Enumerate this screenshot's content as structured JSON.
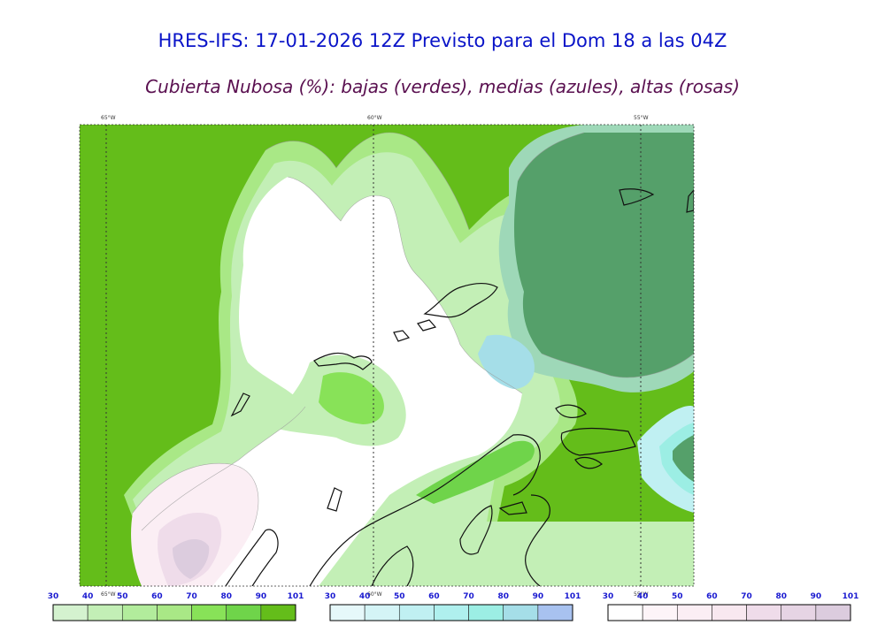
{
  "header": {
    "title": "HRES-IFS: 17-01-2026 12Z Previsto para el Dom 18 a las 04Z",
    "subtitle": "Cubierta Nubosa (%): bajas (verdes), medias (azules), altas (rosas)"
  },
  "map": {
    "longitude_labels": [
      "65°W",
      "60°W",
      "55°W"
    ]
  },
  "colorbars": [
    {
      "name": "bajas",
      "ticks": [
        "30",
        "40",
        "50",
        "60",
        "70",
        "80",
        "90",
        "101"
      ],
      "colors": [
        "#d4f2cf",
        "#c3efb6",
        "#b2ec9c",
        "#a9e886",
        "#88e258",
        "#6fd44a",
        "#64bd1a"
      ]
    },
    {
      "name": "medias",
      "ticks": [
        "30",
        "40",
        "50",
        "60",
        "70",
        "80",
        "90",
        "101"
      ],
      "colors": [
        "#e6f8fa",
        "#d4f4f6",
        "#c0f0f2",
        "#aff0ee",
        "#9ceee4",
        "#a5dee8",
        "#a8c2f0"
      ]
    },
    {
      "name": "altas",
      "ticks": [
        "30",
        "40",
        "50",
        "60",
        "70",
        "80",
        "90",
        "101"
      ],
      "colors": [
        "#ffffff",
        "#fdf4f8",
        "#fbeef4",
        "#f8e8f0",
        "#efdcea",
        "#e6d4e4",
        "#dcccde"
      ]
    }
  ]
}
